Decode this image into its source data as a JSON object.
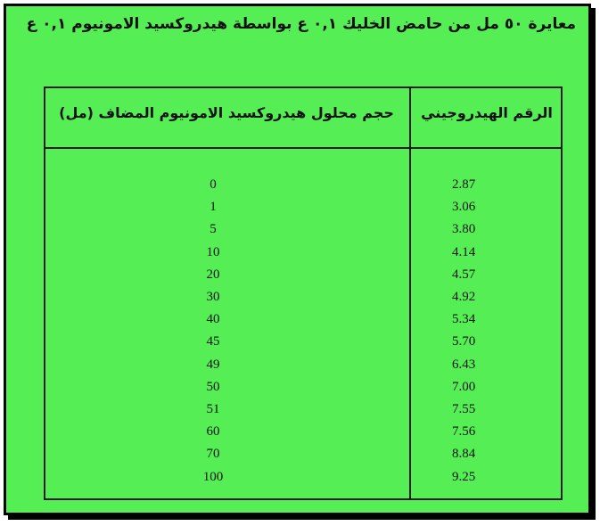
{
  "title": "معايرة ٥٠ مل من حامض الخليك ٠,١ ع بواسطة هيدروكسيد الامونيوم ٠,١ ع",
  "table": {
    "headers": {
      "ph": "الرقم الهيدروجيني",
      "volume": "حجم محلول هيدروكسيد الامونيوم المضاف (مل)"
    },
    "rows": [
      {
        "volume": "0",
        "ph": "2.87"
      },
      {
        "volume": "1",
        "ph": "3.06"
      },
      {
        "volume": "5",
        "ph": "3.80"
      },
      {
        "volume": "10",
        "ph": "4.14"
      },
      {
        "volume": "20",
        "ph": "4.57"
      },
      {
        "volume": "30",
        "ph": "4.92"
      },
      {
        "volume": "40",
        "ph": "5.34"
      },
      {
        "volume": "45",
        "ph": "5.70"
      },
      {
        "volume": "49",
        "ph": "6.43"
      },
      {
        "volume": "50",
        "ph": "7.00"
      },
      {
        "volume": "51",
        "ph": "7.55"
      },
      {
        "volume": "60",
        "ph": "7.56"
      },
      {
        "volume": "70",
        "ph": "8.84"
      },
      {
        "volume": "100",
        "ph": "9.25"
      }
    ]
  },
  "colors": {
    "background": "#55ee55",
    "border": "#000000",
    "text": "#111111"
  }
}
